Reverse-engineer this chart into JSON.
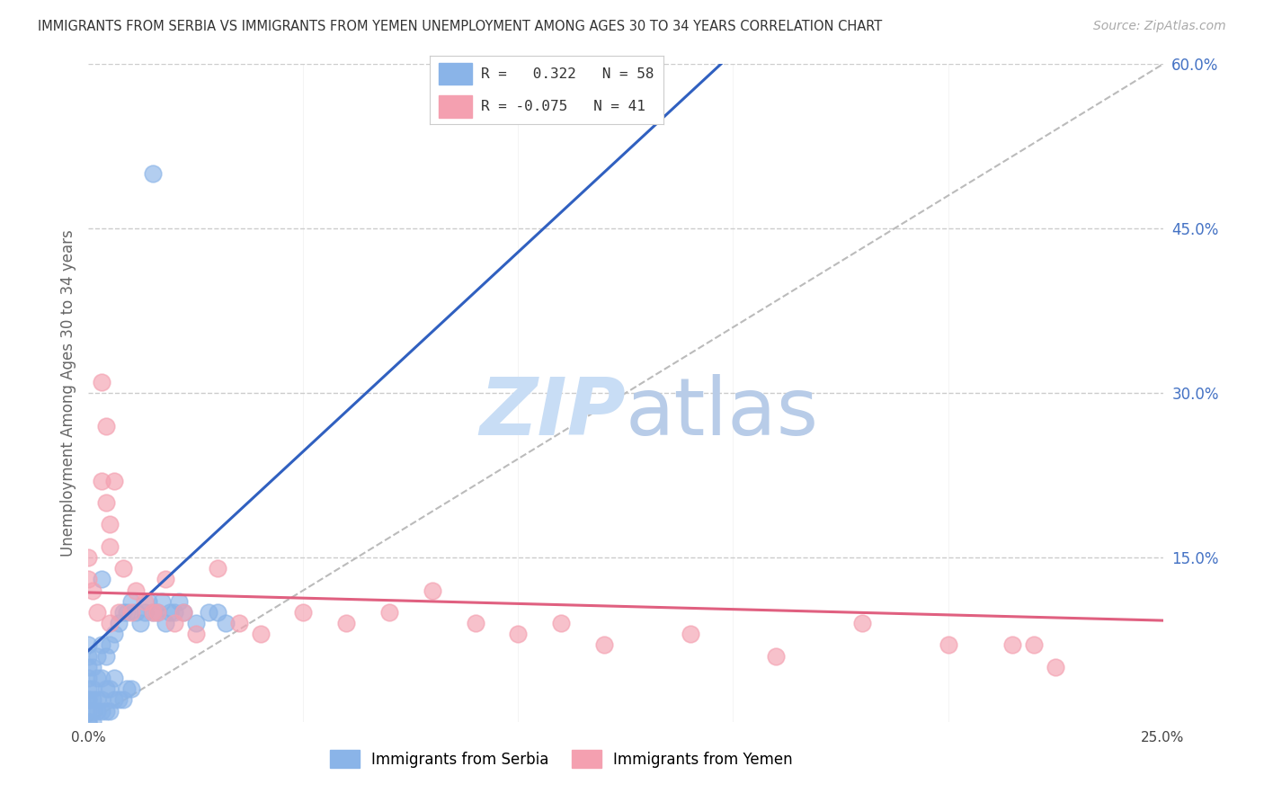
{
  "title": "IMMIGRANTS FROM SERBIA VS IMMIGRANTS FROM YEMEN UNEMPLOYMENT AMONG AGES 30 TO 34 YEARS CORRELATION CHART",
  "source": "Source: ZipAtlas.com",
  "ylabel": "Unemployment Among Ages 30 to 34 years",
  "serbia_R": 0.322,
  "serbia_N": 58,
  "yemen_R": -0.075,
  "yemen_N": 41,
  "serbia_color": "#8ab4e8",
  "yemen_color": "#f4a0b0",
  "serbia_line_color": "#3060c0",
  "yemen_line_color": "#e06080",
  "xlim": [
    0.0,
    0.25
  ],
  "ylim": [
    0.0,
    0.6
  ],
  "xticks": [
    0.0,
    0.05,
    0.1,
    0.15,
    0.2,
    0.25
  ],
  "xticklabels": [
    "0.0%",
    "",
    "",
    "",
    "",
    "25.0%"
  ],
  "yticks_right": [
    0.15,
    0.3,
    0.45,
    0.6
  ],
  "ytick_right_labels": [
    "15.0%",
    "30.0%",
    "45.0%",
    "60.0%"
  ],
  "serbia_x": [
    0.0,
    0.0,
    0.0,
    0.0,
    0.0,
    0.0,
    0.0,
    0.0,
    0.0,
    0.0,
    0.001,
    0.001,
    0.001,
    0.001,
    0.001,
    0.002,
    0.002,
    0.002,
    0.002,
    0.003,
    0.003,
    0.003,
    0.003,
    0.004,
    0.004,
    0.004,
    0.005,
    0.005,
    0.005,
    0.006,
    0.006,
    0.006,
    0.007,
    0.007,
    0.008,
    0.008,
    0.009,
    0.009,
    0.01,
    0.01,
    0.011,
    0.012,
    0.013,
    0.014,
    0.015,
    0.016,
    0.017,
    0.018,
    0.019,
    0.02,
    0.021,
    0.022,
    0.025,
    0.028,
    0.03,
    0.032,
    0.015,
    0.003
  ],
  "serbia_y": [
    0.0,
    0.0,
    0.01,
    0.02,
    0.02,
    0.03,
    0.04,
    0.05,
    0.06,
    0.07,
    0.0,
    0.01,
    0.02,
    0.03,
    0.05,
    0.01,
    0.02,
    0.04,
    0.06,
    0.01,
    0.02,
    0.04,
    0.07,
    0.01,
    0.03,
    0.06,
    0.01,
    0.03,
    0.07,
    0.02,
    0.04,
    0.08,
    0.02,
    0.09,
    0.02,
    0.1,
    0.03,
    0.1,
    0.03,
    0.11,
    0.1,
    0.09,
    0.1,
    0.11,
    0.1,
    0.1,
    0.11,
    0.09,
    0.1,
    0.1,
    0.11,
    0.1,
    0.09,
    0.1,
    0.1,
    0.09,
    0.5,
    0.13
  ],
  "yemen_x": [
    0.0,
    0.0,
    0.001,
    0.002,
    0.003,
    0.003,
    0.004,
    0.004,
    0.005,
    0.005,
    0.006,
    0.007,
    0.008,
    0.01,
    0.011,
    0.013,
    0.015,
    0.016,
    0.018,
    0.02,
    0.022,
    0.025,
    0.03,
    0.035,
    0.04,
    0.05,
    0.06,
    0.07,
    0.08,
    0.09,
    0.1,
    0.11,
    0.12,
    0.14,
    0.16,
    0.18,
    0.2,
    0.215,
    0.22,
    0.225,
    0.005
  ],
  "yemen_y": [
    0.13,
    0.15,
    0.12,
    0.1,
    0.31,
    0.22,
    0.27,
    0.2,
    0.18,
    0.16,
    0.22,
    0.1,
    0.14,
    0.1,
    0.12,
    0.11,
    0.1,
    0.1,
    0.13,
    0.09,
    0.1,
    0.08,
    0.14,
    0.09,
    0.08,
    0.1,
    0.09,
    0.1,
    0.12,
    0.09,
    0.08,
    0.09,
    0.07,
    0.08,
    0.06,
    0.09,
    0.07,
    0.07,
    0.07,
    0.05,
    0.09
  ],
  "serbia_line_x0": 0.0,
  "serbia_line_y0": 0.065,
  "serbia_line_x1": 0.022,
  "serbia_line_y1": 0.145,
  "yemen_line_x0": 0.0,
  "yemen_line_y0": 0.118,
  "yemen_line_x1": 0.225,
  "yemen_line_y1": 0.095,
  "watermark": "ZIPatlas",
  "background_color": "#ffffff"
}
